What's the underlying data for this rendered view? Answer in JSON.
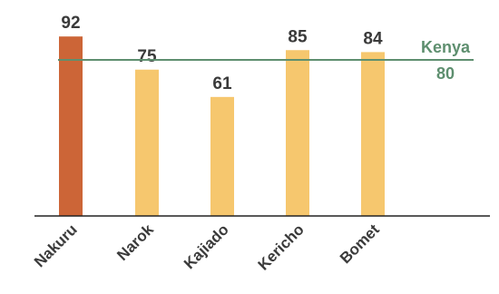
{
  "chart_data": {
    "type": "bar",
    "categories": [
      "Nakuru",
      "Narok",
      "Kajiado",
      "Kericho",
      "Bomet"
    ],
    "values": [
      92,
      75,
      61,
      85,
      84
    ],
    "ylim": [
      0,
      100
    ],
    "grid": false,
    "reference_line": {
      "label": "Kenya",
      "value": 80,
      "value_label": "80"
    },
    "colors": {
      "highlight": "#CC6537",
      "bar": "#F6C76E",
      "reference": "#5E8F6F",
      "axis": "#222222"
    },
    "highlight_index": 0
  }
}
